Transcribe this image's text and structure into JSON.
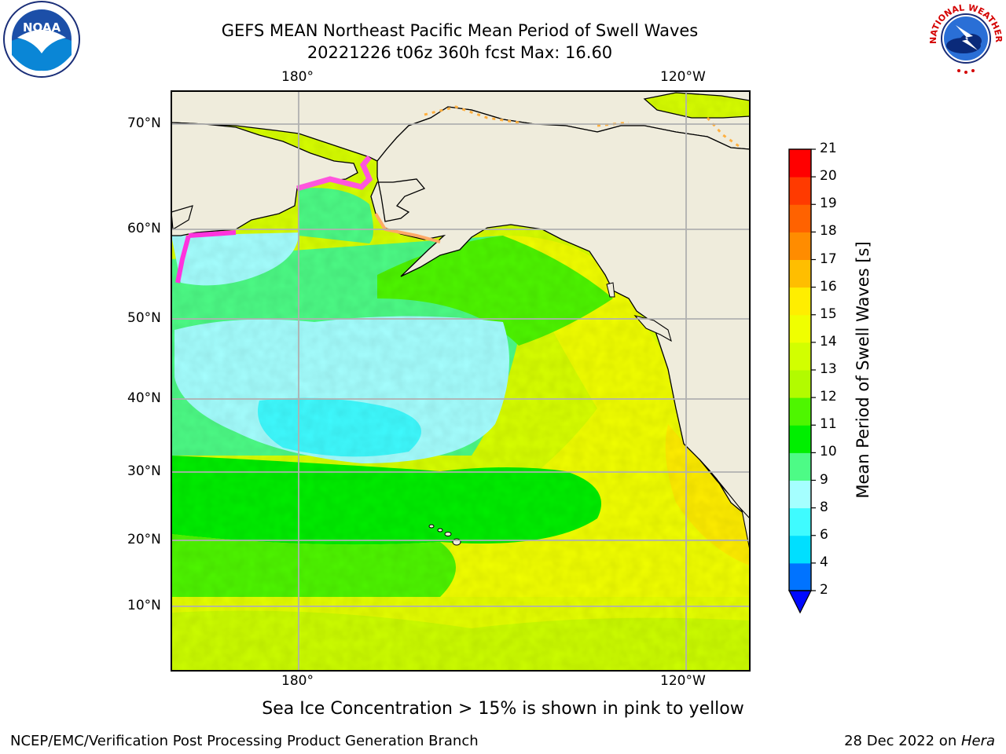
{
  "title": {
    "line1": "GEFS MEAN Northeast Pacific Mean Period of Swell Waves",
    "line2": "20221226 t06z 360h fcst   Max: 16.60"
  },
  "logos": {
    "left": {
      "icon": "noaa-logo-icon",
      "text": "NOAA"
    },
    "right": {
      "icon": "nws-logo-icon",
      "text": "NATIONAL WEATHER SERVICE"
    }
  },
  "map": {
    "projection": "cylindrical",
    "lon_top_labels": [
      "180°",
      "120°W"
    ],
    "lon_bottom_labels": [
      "180°",
      "120°W"
    ],
    "lat_labels": [
      "70°N",
      "60°N",
      "50°N",
      "40°N",
      "30°N",
      "20°N",
      "10°N"
    ],
    "gridlines": true,
    "land_color": "#efecdc",
    "ocean_field": "Mean Period of Swell Waves"
  },
  "colorbar": {
    "label": "Mean Period of Swell Waves [s]",
    "ticks": [
      "2",
      "4",
      "6",
      "8",
      "9",
      "10",
      "11",
      "12",
      "13",
      "14",
      "15",
      "16",
      "17",
      "18",
      "19",
      "20",
      "21"
    ],
    "colors": [
      "#0073ff",
      "#00dfff",
      "#3ffbff",
      "#a5ffff",
      "#4dfb86",
      "#00ef00",
      "#4ef600",
      "#b2fb00",
      "#d2ff00",
      "#f0ff00",
      "#ffee00",
      "#ffbe00",
      "#ff8c00",
      "#ff6200",
      "#ff3a00",
      "#ff0000"
    ],
    "extend_min_color": "#0009ff"
  },
  "footer": {
    "note": "Sea Ice Concentration > 15% is shown in pink to yellow",
    "credit": "NCEP/EMC/Verification Post Processing Product Generation Branch",
    "date": "28 Dec 2022 on ",
    "host": "Hera"
  }
}
